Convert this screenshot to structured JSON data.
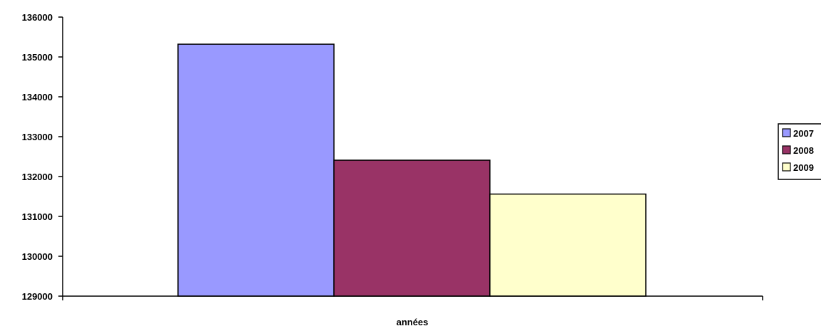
{
  "chart_data": {
    "type": "bar",
    "title": "",
    "xlabel": "années",
    "ylabel": "",
    "ylim": [
      129000,
      136000
    ],
    "yticks": [
      129000,
      130000,
      131000,
      132000,
      133000,
      134000,
      135000,
      136000
    ],
    "grid": false,
    "legend_position": "right",
    "categories": [
      ""
    ],
    "series": [
      {
        "name": "2007",
        "values": [
          135320
        ],
        "color": "#9999FF"
      },
      {
        "name": "2008",
        "values": [
          132410
        ],
        "color": "#993366"
      },
      {
        "name": "2009",
        "values": [
          131560
        ],
        "color": "#FFFFCC"
      }
    ]
  }
}
